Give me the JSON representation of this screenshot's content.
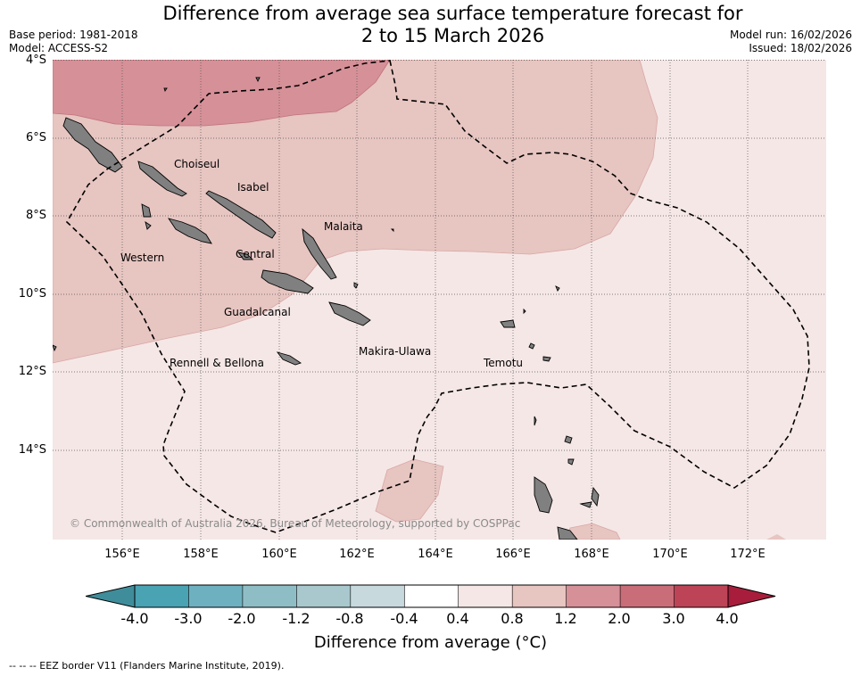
{
  "header": {
    "title_line1": "Difference from average sea surface temperature forecast for",
    "title_line2": "2 to 15 March 2026",
    "base_period": "Base period: 1981-2018",
    "model": "Model: ACCESS-S2",
    "model_run": "Model run: 16/02/2026",
    "issued": "Issued: 18/02/2026"
  },
  "map": {
    "latitude_labels": [
      "4°S",
      "6°S",
      "8°S",
      "10°S",
      "12°S",
      "14°S"
    ],
    "longitude_labels": [
      "156°E",
      "158°E",
      "160°E",
      "162°E",
      "164°E",
      "166°E",
      "168°E",
      "170°E",
      "172°E"
    ],
    "provinces": [
      "Choiseul",
      "Isabel",
      "Malaita",
      "Western",
      "Central",
      "Guadalcanal",
      "Makira-Ulawa",
      "Rennell & Bellona",
      "Temotu"
    ],
    "copyright": "© Commonwealth of Australia 2026, Bureau of Meteorology, supported by COSPPac",
    "background_color": "#f5e7e6",
    "land_color": "#808080"
  },
  "colorbar": {
    "title": "Difference from average (°C)",
    "ticks": [
      "-4.0",
      "-3.0",
      "-2.0",
      "-1.2",
      "-0.8",
      "-0.4",
      "0.4",
      "0.8",
      "1.2",
      "2.0",
      "3.0",
      "4.0"
    ],
    "colors": [
      "#3f8d9a",
      "#4aa3b3",
      "#6eb0bf",
      "#8fbdc6",
      "#a8c8cd",
      "#c7d9dd",
      "#ffffff",
      "#f5e7e6",
      "#e7c5c1",
      "#d69098",
      "#c96d78",
      "#bc4456",
      "#a81d3b"
    ]
  },
  "footer": {
    "eez_legend": "--  --  -- EEZ border V11 (Flanders Marine Institute, 2019)."
  }
}
